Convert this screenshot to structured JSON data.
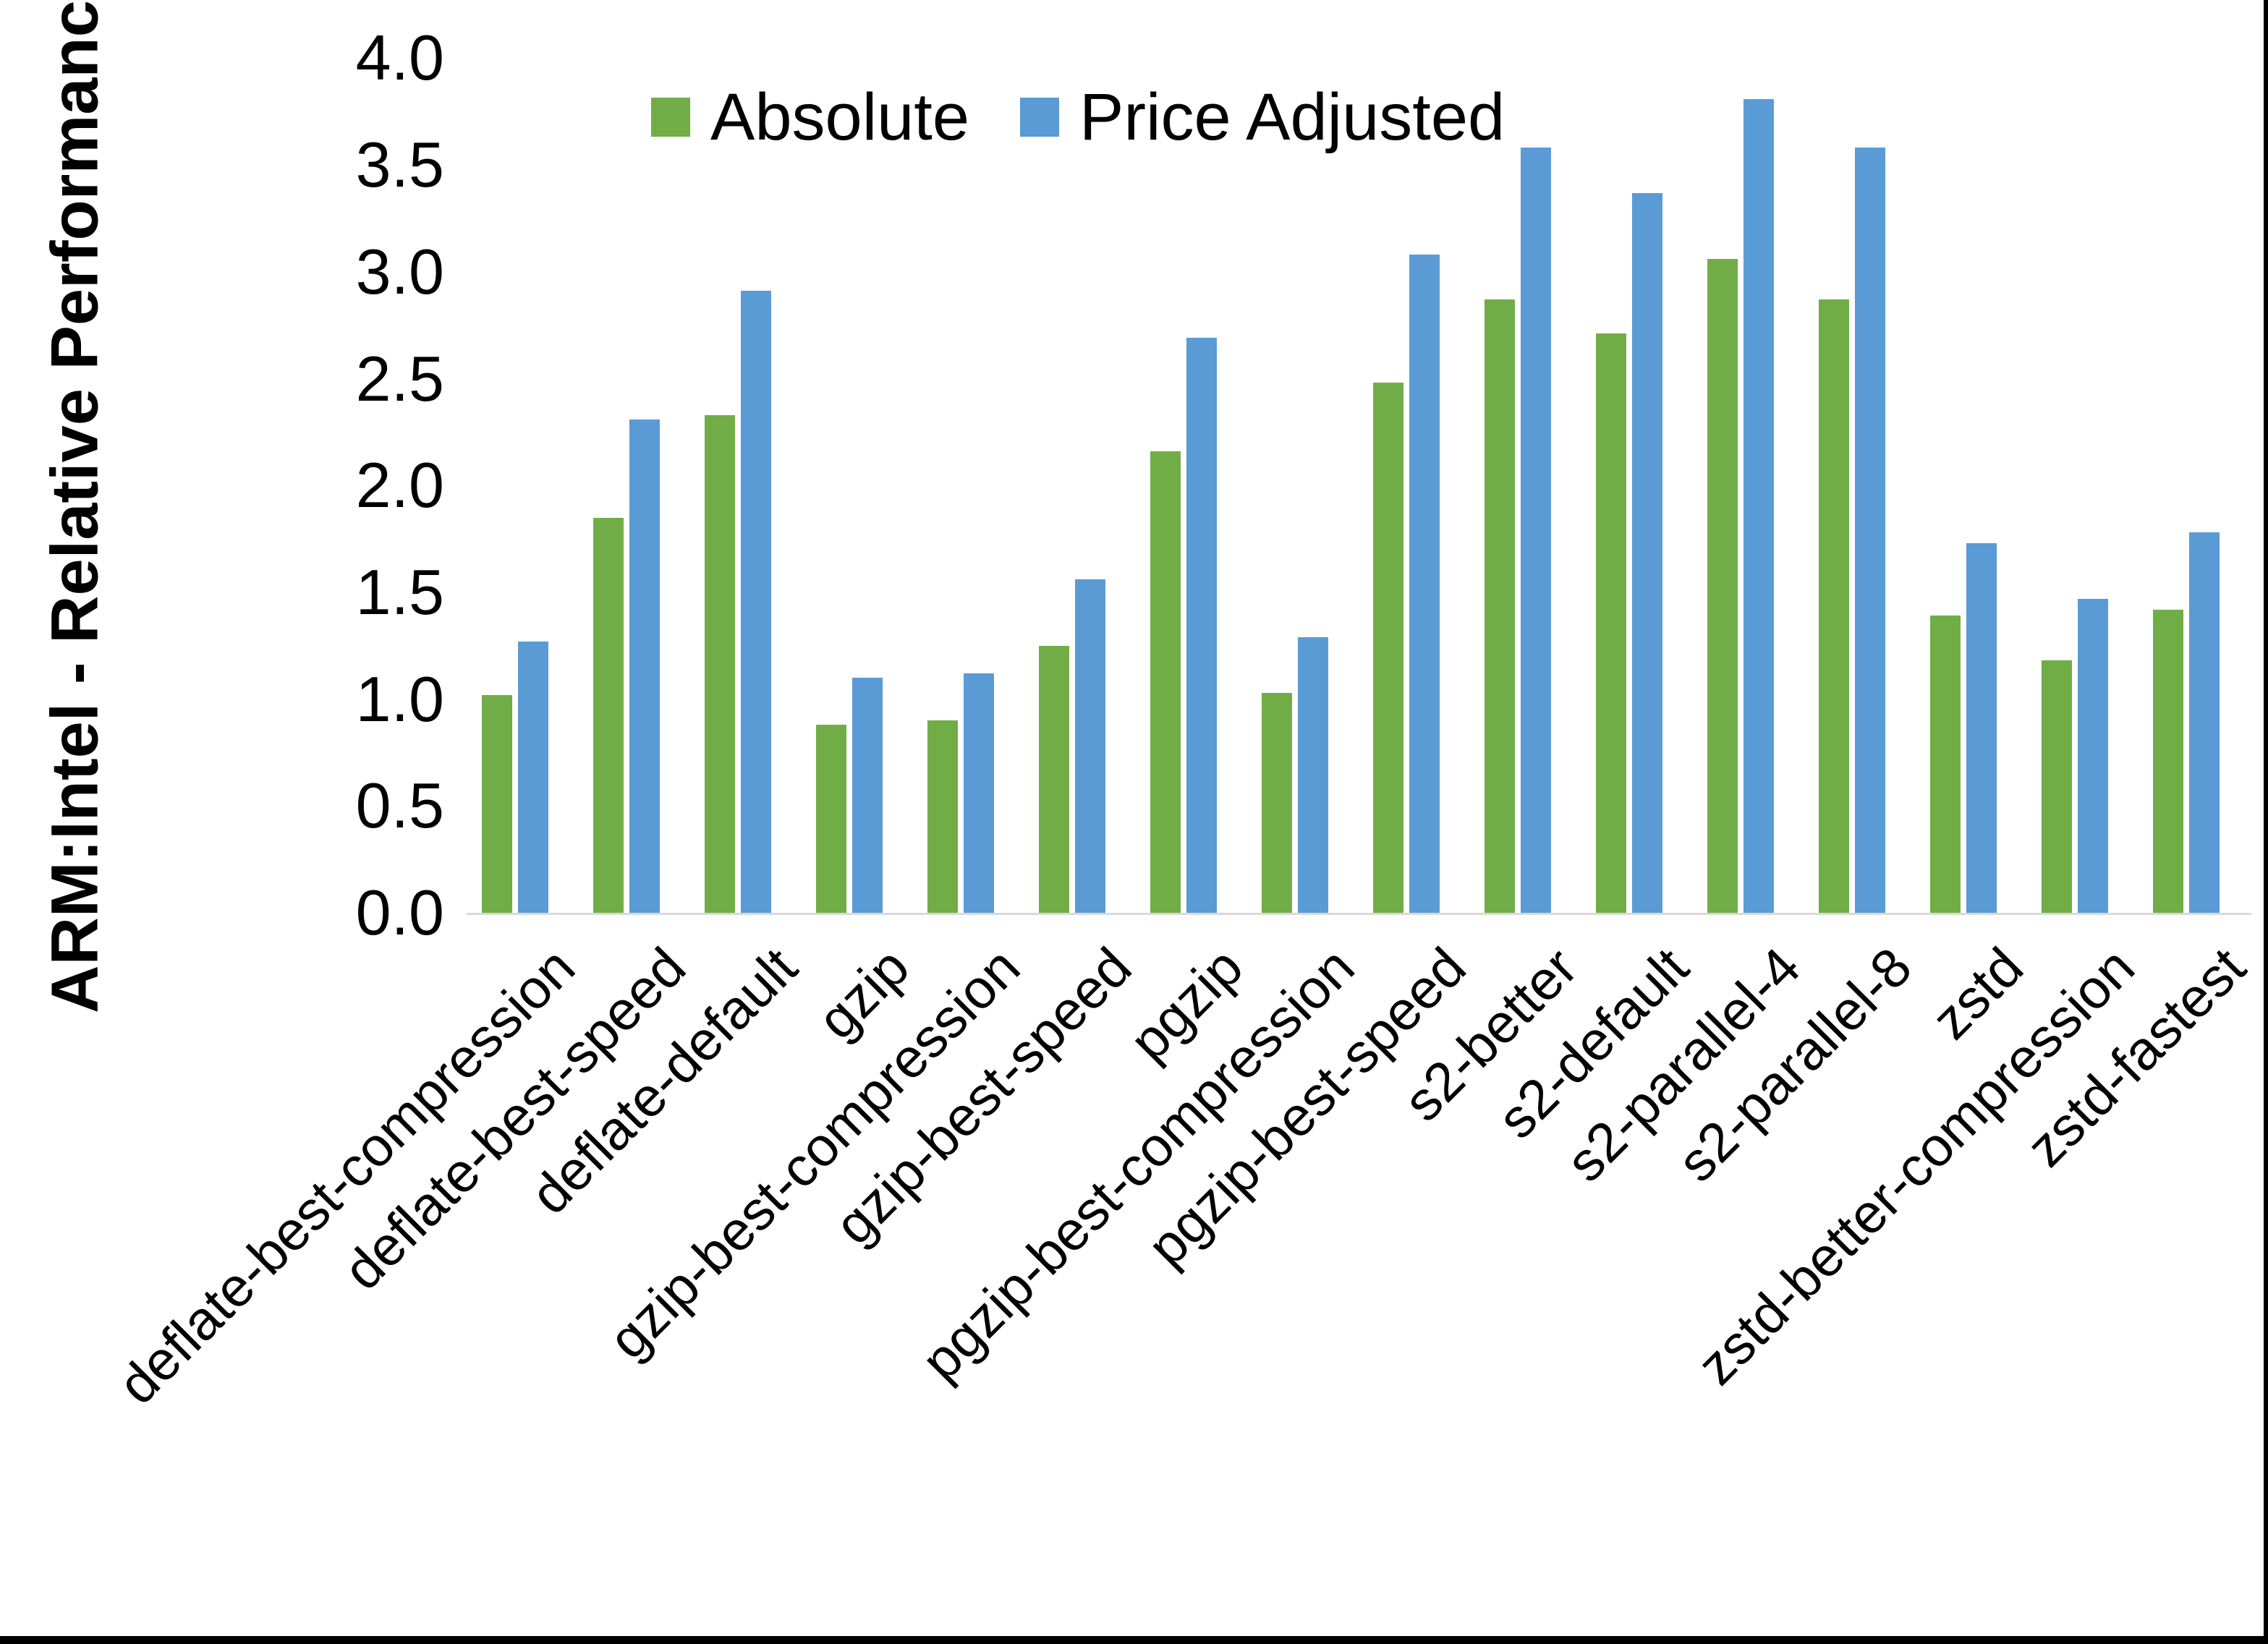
{
  "chart_data": {
    "type": "bar",
    "title": "",
    "ylabel": "ARM:Intel - Relative Performance",
    "xlabel": "",
    "ylim": [
      0.0,
      4.0
    ],
    "ytick_step": 0.5,
    "ytick_labels": [
      "0.0",
      "0.5",
      "1.0",
      "1.5",
      "2.0",
      "2.5",
      "3.0",
      "3.5",
      "4.0"
    ],
    "grid": false,
    "legend_position": "top-center",
    "axis_line_color": "#d9d9d9",
    "text_color": "#000000",
    "background_color": "#ffffff",
    "categories": [
      "deflate-best-compression",
      "deflate-best-speed",
      "deflate-default",
      "gzip",
      "gzip-best-compression",
      "gzip-best-speed",
      "pgzip",
      "pgzip-best-compression",
      "pgzip-best-speed",
      "s2-better",
      "s2-default",
      "s2-parallel-4",
      "s2-parallel-8",
      "zstd",
      "zstd-better-compression",
      "zstd-fastest"
    ],
    "series": [
      {
        "name": "Absolute",
        "color": "#70ad47",
        "values": [
          1.02,
          1.85,
          2.33,
          0.88,
          0.9,
          1.25,
          2.16,
          1.03,
          2.48,
          2.87,
          2.71,
          3.06,
          2.87,
          1.39,
          1.18,
          1.42
        ]
      },
      {
        "name": "Price Adjusted",
        "color": "#5b9bd5",
        "values": [
          1.27,
          2.31,
          2.91,
          1.1,
          1.12,
          1.56,
          2.69,
          1.29,
          3.08,
          3.58,
          3.37,
          3.81,
          3.58,
          1.73,
          1.47,
          1.78
        ]
      }
    ]
  }
}
